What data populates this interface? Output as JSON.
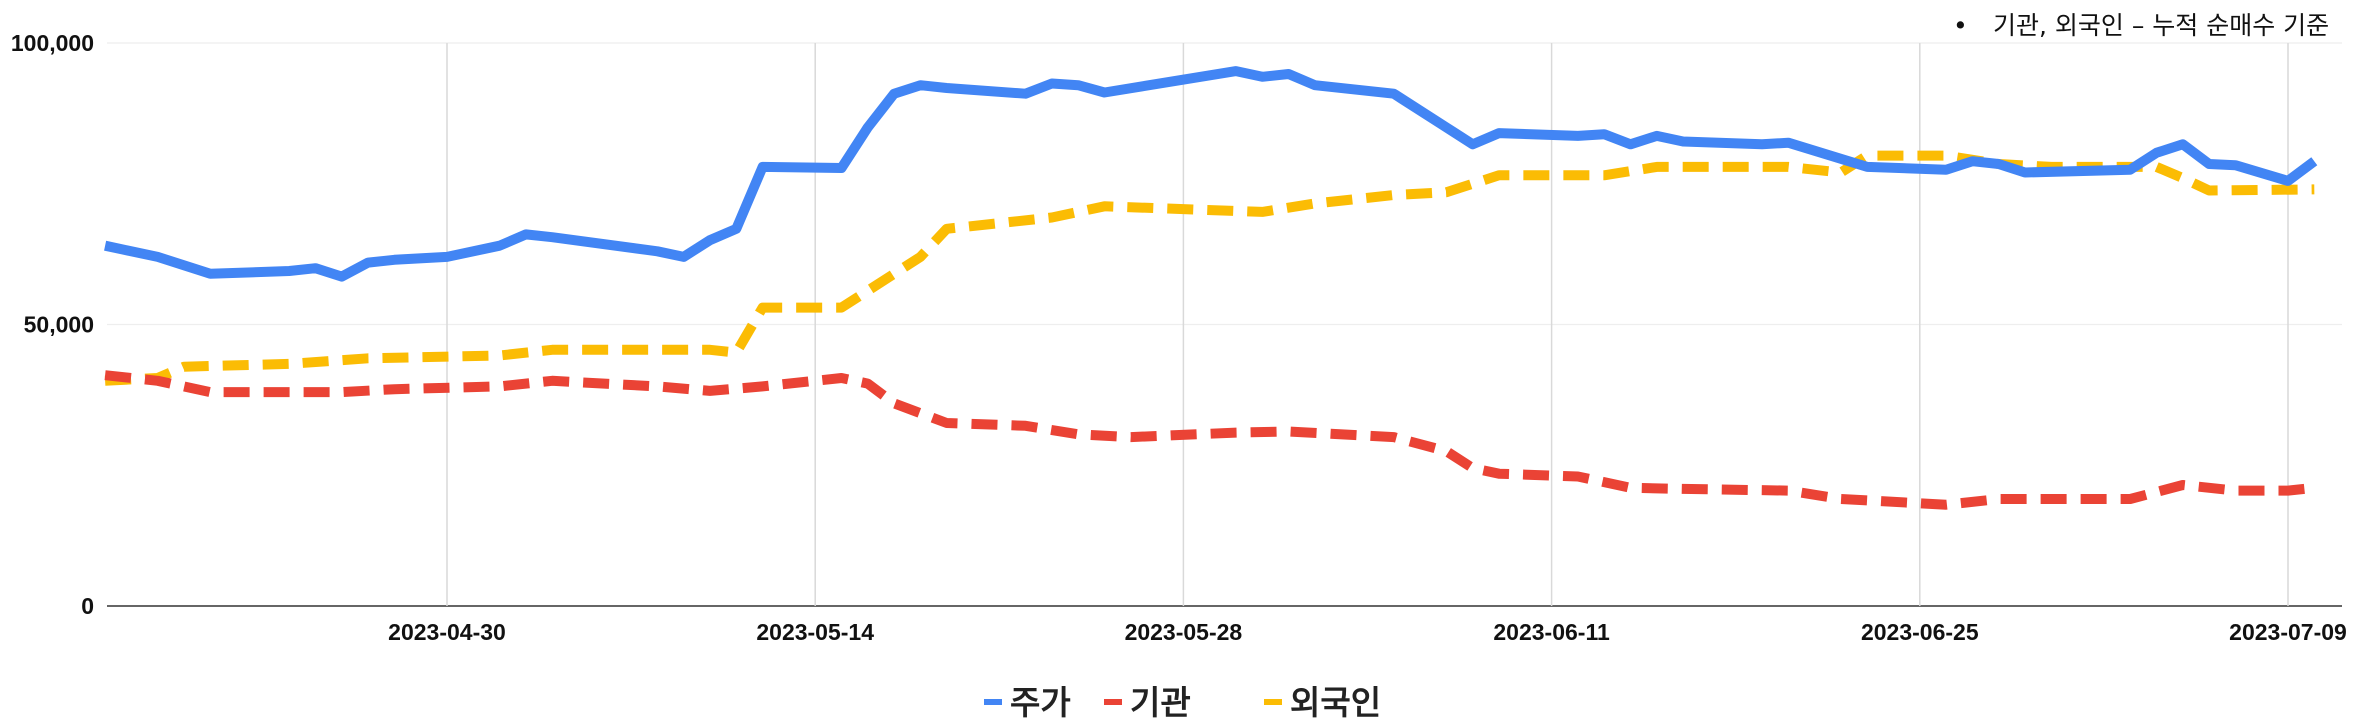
{
  "note": {
    "bullet": "•",
    "text": "기관, 외국인 – 누적 순매수 기준"
  },
  "chart_data": {
    "type": "line",
    "title": "",
    "xlabel": "",
    "ylabel": "",
    "ylim": [
      0,
      100000
    ],
    "yticks": [
      {
        "value": 0,
        "label": "0"
      },
      {
        "value": 50000,
        "label": "50,000"
      },
      {
        "value": 100000,
        "label": "100,000"
      }
    ],
    "xlim": [
      "2023-04-17",
      "2023-07-09"
    ],
    "xticks": [
      "2023-04-30",
      "2023-05-14",
      "2023-05-28",
      "2023-06-11",
      "2023-06-25",
      "2023-07-09"
    ],
    "grid": "vertical",
    "legend": "bottom",
    "series": [
      {
        "name": "주가",
        "color": "#4285F4",
        "dash": "solid",
        "points": [
          [
            "2023-04-17",
            64000
          ],
          [
            "2023-04-19",
            62000
          ],
          [
            "2023-04-21",
            59000
          ],
          [
            "2023-04-24",
            59500
          ],
          [
            "2023-04-25",
            60000
          ],
          [
            "2023-04-26",
            58500
          ],
          [
            "2023-04-27",
            61000
          ],
          [
            "2023-04-28",
            61500
          ],
          [
            "2023-04-30",
            62000
          ],
          [
            "2023-05-02",
            64000
          ],
          [
            "2023-05-03",
            66000
          ],
          [
            "2023-05-04",
            65500
          ],
          [
            "2023-05-08",
            63000
          ],
          [
            "2023-05-09",
            62000
          ],
          [
            "2023-05-10",
            65000
          ],
          [
            "2023-05-11",
            67000
          ],
          [
            "2023-05-12",
            78000
          ],
          [
            "2023-05-15",
            77800
          ],
          [
            "2023-05-16",
            85000
          ],
          [
            "2023-05-17",
            91000
          ],
          [
            "2023-05-18",
            92500
          ],
          [
            "2023-05-19",
            92000
          ],
          [
            "2023-05-22",
            91000
          ],
          [
            "2023-05-23",
            92800
          ],
          [
            "2023-05-24",
            92500
          ],
          [
            "2023-05-25",
            91200
          ],
          [
            "2023-05-30",
            95000
          ],
          [
            "2023-05-31",
            94000
          ],
          [
            "2023-06-01",
            94500
          ],
          [
            "2023-06-02",
            92500
          ],
          [
            "2023-06-05",
            91000
          ],
          [
            "2023-06-07",
            85000
          ],
          [
            "2023-06-08",
            82000
          ],
          [
            "2023-06-09",
            84000
          ],
          [
            "2023-06-12",
            83500
          ],
          [
            "2023-06-13",
            83800
          ],
          [
            "2023-06-14",
            82000
          ],
          [
            "2023-06-15",
            83500
          ],
          [
            "2023-06-16",
            82500
          ],
          [
            "2023-06-19",
            82000
          ],
          [
            "2023-06-20",
            82300
          ],
          [
            "2023-06-23",
            78000
          ],
          [
            "2023-06-26",
            77500
          ],
          [
            "2023-06-27",
            79000
          ],
          [
            "2023-06-28",
            78500
          ],
          [
            "2023-06-29",
            77000
          ],
          [
            "2023-07-03",
            77500
          ],
          [
            "2023-07-04",
            80500
          ],
          [
            "2023-07-05",
            82000
          ],
          [
            "2023-07-06",
            78500
          ],
          [
            "2023-07-07",
            78300
          ],
          [
            "2023-07-09",
            75500
          ],
          [
            "2023-07-10",
            79000
          ]
        ]
      },
      {
        "name": "기관",
        "color": "#EA4335",
        "dash": "dashed",
        "points": [
          [
            "2023-04-17",
            41000
          ],
          [
            "2023-04-19",
            40000
          ],
          [
            "2023-04-21",
            38000
          ],
          [
            "2023-04-24",
            38000
          ],
          [
            "2023-04-26",
            38000
          ],
          [
            "2023-04-28",
            38500
          ],
          [
            "2023-05-02",
            39000
          ],
          [
            "2023-05-04",
            40000
          ],
          [
            "2023-05-08",
            39000
          ],
          [
            "2023-05-10",
            38200
          ],
          [
            "2023-05-12",
            39000
          ],
          [
            "2023-05-15",
            40500
          ],
          [
            "2023-05-16",
            39500
          ],
          [
            "2023-05-17",
            36000
          ],
          [
            "2023-05-19",
            32500
          ],
          [
            "2023-05-22",
            32000
          ],
          [
            "2023-05-24",
            30500
          ],
          [
            "2023-05-26",
            30000
          ],
          [
            "2023-05-30",
            30800
          ],
          [
            "2023-06-01",
            31000
          ],
          [
            "2023-06-05",
            30000
          ],
          [
            "2023-06-07",
            27500
          ],
          [
            "2023-06-08",
            24500
          ],
          [
            "2023-06-09",
            23500
          ],
          [
            "2023-06-12",
            23000
          ],
          [
            "2023-06-14",
            21000
          ],
          [
            "2023-06-16",
            20800
          ],
          [
            "2023-06-20",
            20500
          ],
          [
            "2023-06-22",
            19000
          ],
          [
            "2023-06-26",
            18000
          ],
          [
            "2023-06-28",
            19000
          ],
          [
            "2023-07-03",
            19000
          ],
          [
            "2023-07-05",
            21500
          ],
          [
            "2023-07-07",
            20500
          ],
          [
            "2023-07-09",
            20500
          ],
          [
            "2023-07-10",
            21000
          ]
        ]
      },
      {
        "name": "외국인",
        "color": "#FBBC04",
        "dash": "dashed",
        "points": [
          [
            "2023-04-17",
            40000
          ],
          [
            "2023-04-19",
            40500
          ],
          [
            "2023-04-20",
            42500
          ],
          [
            "2023-04-24",
            43000
          ],
          [
            "2023-04-27",
            44000
          ],
          [
            "2023-05-02",
            44500
          ],
          [
            "2023-05-04",
            45500
          ],
          [
            "2023-05-10",
            45500
          ],
          [
            "2023-05-11",
            45000
          ],
          [
            "2023-05-12",
            53000
          ],
          [
            "2023-05-15",
            53000
          ],
          [
            "2023-05-16",
            56000
          ],
          [
            "2023-05-18",
            62000
          ],
          [
            "2023-05-19",
            67000
          ],
          [
            "2023-05-23",
            69000
          ],
          [
            "2023-05-25",
            71000
          ],
          [
            "2023-05-31",
            70000
          ],
          [
            "2023-06-02",
            71500
          ],
          [
            "2023-06-05",
            73000
          ],
          [
            "2023-06-07",
            73500
          ],
          [
            "2023-06-09",
            76500
          ],
          [
            "2023-06-13",
            76500
          ],
          [
            "2023-06-15",
            78000
          ],
          [
            "2023-06-20",
            78000
          ],
          [
            "2023-06-22",
            77000
          ],
          [
            "2023-06-23",
            80000
          ],
          [
            "2023-06-26",
            80000
          ],
          [
            "2023-06-28",
            78500
          ],
          [
            "2023-06-30",
            78000
          ],
          [
            "2023-07-04",
            78000
          ],
          [
            "2023-07-05",
            76000
          ],
          [
            "2023-07-06",
            73800
          ],
          [
            "2023-07-10",
            74000
          ]
        ]
      }
    ]
  }
}
